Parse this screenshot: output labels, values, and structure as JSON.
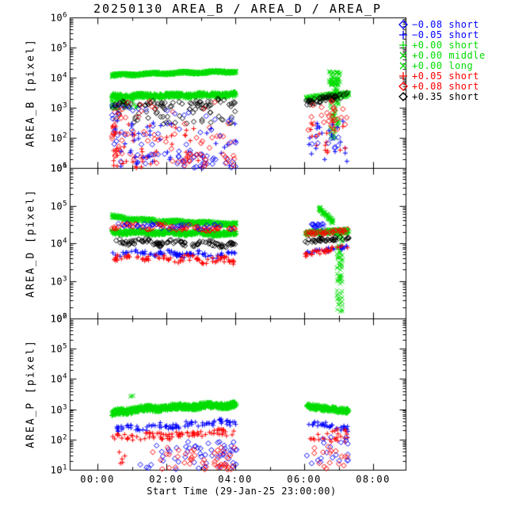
{
  "title": "20250130 AREA_B / AREA_D / AREA_P",
  "xaxis": {
    "label": "Start Time (29-Jan-25 23:00:00)",
    "ticks": [
      {
        "label": "00:00",
        "hour": 0
      },
      {
        "label": "02:00",
        "hour": 2
      },
      {
        "label": "04:00",
        "hour": 4
      },
      {
        "label": "06:00",
        "hour": 6
      },
      {
        "label": "08:00",
        "hour": 8
      }
    ],
    "minor_tick_hours": [
      1,
      3,
      5,
      7
    ]
  },
  "panels": [
    {
      "id": "AREA_B",
      "ylabel": "AREA_B [pixel]",
      "y_log_min": 1,
      "y_log_max": 6,
      "ytick_exponents": [
        1,
        2,
        3,
        4,
        5,
        6
      ]
    },
    {
      "id": "AREA_D",
      "ylabel": "AREA_D [pixel]",
      "y_log_min": 2,
      "y_log_max": 6,
      "ytick_exponents": [
        2,
        3,
        4,
        5,
        6
      ]
    },
    {
      "id": "AREA_P",
      "ylabel": "AREA_P [pixel]",
      "y_log_min": 1,
      "y_log_max": 6,
      "ytick_exponents": [
        1,
        2,
        3,
        4,
        5,
        6
      ]
    }
  ],
  "colors": {
    "blue": "#0000ff",
    "green": "#00dd00",
    "red": "#ff0000",
    "black": "#000000"
  },
  "legend": {
    "items": [
      {
        "marker": "diamond",
        "color": "#0000ff",
        "label": "−0.08 short"
      },
      {
        "marker": "plus",
        "color": "#0000ff",
        "label": "−0.05 short"
      },
      {
        "marker": "plus",
        "color": "#00dd00",
        "label": "+0.00 short"
      },
      {
        "marker": "x",
        "color": "#00dd00",
        "label": "+0.00 middle"
      },
      {
        "marker": "x",
        "color": "#00dd00",
        "label": "+0.00 long"
      },
      {
        "marker": "plus",
        "color": "#ff0000",
        "label": "+0.05 short"
      },
      {
        "marker": "diamond",
        "color": "#ff0000",
        "label": "+0.08 short"
      },
      {
        "marker": "diamond",
        "color": "#000000",
        "label": "+0.35 short"
      }
    ]
  },
  "chart_data": {
    "type": "scatter",
    "x_unit": "hours after 30-Jan-2025 00:00 (axis origin 29-Jan-25 23:00:00)",
    "x_range_hours": [
      -0.8,
      8.95
    ],
    "observation_windows_hours": [
      [
        0.42,
        4.03
      ],
      [
        6.03,
        7.3
      ]
    ],
    "y_scale": "log10 pixel area",
    "series": [
      {
        "panel": 0,
        "marker": "x",
        "color": "#00dd00",
        "label": "+0.00 middle",
        "mode": "band",
        "n": 650,
        "t0": 0.42,
        "t1": 4.03,
        "v0": 4.06,
        "v1": 4.2,
        "spread": 0.05,
        "curve": 0.6,
        "wiggle": 0.02
      },
      {
        "panel": 0,
        "marker": "plus",
        "color": "#00dd00",
        "label": "+0.00 short",
        "mode": "band",
        "n": 650,
        "t0": 0.42,
        "t1": 4.03,
        "v0": 3.38,
        "v1": 3.44,
        "spread": 0.08,
        "wiggle": 0.02
      },
      {
        "panel": 0,
        "marker": "x",
        "color": "#00dd00",
        "label": "+0.00 long",
        "mode": "scatter",
        "n": 50,
        "t0": 0.42,
        "t1": 1.2,
        "v0": 2.95,
        "v1": 3.38,
        "bias": "left"
      },
      {
        "panel": 0,
        "marker": "diamond",
        "color": "#000000",
        "label": "+0.35 short",
        "mode": "band",
        "n": 65,
        "t0": 0.42,
        "t1": 4.03,
        "v0": 3.08,
        "v1": 3.18,
        "spread": 0.1,
        "wiggle": 0.05
      },
      {
        "panel": 0,
        "marker": "diamond",
        "color": "#000000",
        "label": "+0.35 short",
        "mode": "scatter",
        "n": 45,
        "t0": 0.42,
        "t1": 4.03,
        "v0": 2.45,
        "v1": 3.08
      },
      {
        "panel": 0,
        "marker": "diamond",
        "color": "#ff0000",
        "label": "+0.08 short",
        "mode": "scatter",
        "n": 75,
        "t0": 0.42,
        "t1": 4.03,
        "v0": 1.15,
        "v1": 3.25,
        "bias": "left"
      },
      {
        "panel": 0,
        "marker": "diamond",
        "color": "#0000ff",
        "label": "−0.08 short",
        "mode": "scatter",
        "n": 55,
        "t0": 0.42,
        "t1": 4.03,
        "v0": 1.1,
        "v1": 3.1,
        "bias": "left"
      },
      {
        "panel": 0,
        "marker": "plus",
        "color": "#ff0000",
        "label": "+0.05 short",
        "mode": "scatter",
        "n": 45,
        "t0": 0.42,
        "t1": 3.4,
        "v0": 1.0,
        "v1": 2.5,
        "bias": "left"
      },
      {
        "panel": 0,
        "marker": "plus",
        "color": "#0000ff",
        "label": "−0.05 short",
        "mode": "scatter",
        "n": 40,
        "t0": 0.42,
        "t1": 4.03,
        "v0": 1.0,
        "v1": 2.6,
        "bias": "left"
      },
      {
        "panel": 0,
        "marker": "diamond",
        "color": "#0000ff",
        "label": "−0.08 short",
        "mode": "scatter",
        "n": 25,
        "t0": 2.3,
        "t1": 4.05,
        "v0": 1.0,
        "v1": 1.6
      },
      {
        "panel": 0,
        "marker": "diamond",
        "color": "#ff0000",
        "label": "+0.08 short",
        "mode": "scatter",
        "n": 20,
        "t0": 2.3,
        "t1": 4.05,
        "v0": 1.0,
        "v1": 1.5
      },
      {
        "panel": 0,
        "marker": "x",
        "color": "#00dd00",
        "label": "+0.00 long",
        "mode": "band",
        "n": 180,
        "t0": 6.03,
        "t1": 7.3,
        "v0": 3.3,
        "v1": 3.45,
        "spread": 0.09
      },
      {
        "panel": 0,
        "marker": "x",
        "color": "#00dd00",
        "label": "+0.00 long",
        "mode": "streak",
        "n": 80,
        "t0": 6.75,
        "t1": 7.0,
        "v0": 1.95,
        "v1": 4.0
      },
      {
        "panel": 0,
        "marker": "x",
        "color": "#00dd00",
        "label": "+0.00 middle",
        "mode": "scatter",
        "n": 45,
        "t0": 6.72,
        "t1": 7.05,
        "v0": 3.75,
        "v1": 4.22
      },
      {
        "panel": 0,
        "marker": "diamond",
        "color": "#000000",
        "label": "+0.35 short",
        "mode": "band",
        "n": 50,
        "t0": 6.03,
        "t1": 7.3,
        "v0": 3.15,
        "v1": 3.45,
        "spread": 0.1
      },
      {
        "panel": 0,
        "marker": "diamond",
        "color": "#ff0000",
        "label": "+0.08 short",
        "mode": "scatter",
        "n": 28,
        "t0": 6.05,
        "t1": 7.25,
        "v0": 2.2,
        "v1": 3.25
      },
      {
        "panel": 0,
        "marker": "plus",
        "color": "#0000ff",
        "label": "−0.05 short",
        "mode": "scatter",
        "n": 20,
        "t0": 6.1,
        "t1": 7.25,
        "v0": 1.2,
        "v1": 2.6
      },
      {
        "panel": 0,
        "marker": "plus",
        "color": "#ff0000",
        "label": "+0.05 short",
        "mode": "scatter",
        "n": 18,
        "t0": 6.1,
        "t1": 7.25,
        "v0": 1.5,
        "v1": 2.75
      },
      {
        "panel": 0,
        "marker": "diamond",
        "color": "#0000ff",
        "label": "−0.08 short",
        "mode": "scatter",
        "n": 10,
        "t0": 6.1,
        "t1": 7.2,
        "v0": 1.6,
        "v1": 2.85
      },
      {
        "panel": 1,
        "marker": "x",
        "color": "#00dd00",
        "label": "+0.00 middle",
        "mode": "band",
        "n": 550,
        "t0": 0.42,
        "t1": 4.03,
        "v0": 4.74,
        "v1": 4.51,
        "spread": 0.05,
        "curve": 0.45,
        "wiggle": 0.015
      },
      {
        "panel": 1,
        "marker": "plus",
        "color": "#00dd00",
        "label": "+0.00 short",
        "mode": "band",
        "n": 800,
        "t0": 0.42,
        "t1": 4.03,
        "v0": 4.3,
        "v1": 4.25,
        "spread": 0.06,
        "wiggle": 0.02
      },
      {
        "panel": 1,
        "marker": "diamond",
        "color": "#ff0000",
        "label": "+0.08 short",
        "mode": "band",
        "n": 85,
        "t0": 0.42,
        "t1": 4.03,
        "v0": 4.46,
        "v1": 4.38,
        "spread": 0.05,
        "wiggle": 0.04
      },
      {
        "panel": 1,
        "marker": "diamond",
        "color": "#0000ff",
        "label": "−0.08 short",
        "mode": "band",
        "n": 35,
        "t0": 0.42,
        "t1": 4.03,
        "v0": 4.48,
        "v1": 4.42,
        "spread": 0.05,
        "wiggle": 0.03
      },
      {
        "panel": 1,
        "marker": "diamond",
        "color": "#000000",
        "label": "+0.35 short",
        "mode": "band",
        "n": 110,
        "t0": 0.42,
        "t1": 4.03,
        "v0": 4.06,
        "v1": 3.96,
        "spread": 0.06,
        "wiggle": 0.05
      },
      {
        "panel": 1,
        "marker": "plus",
        "color": "#0000ff",
        "label": "−0.05 short",
        "mode": "band",
        "n": 85,
        "t0": 0.42,
        "t1": 4.03,
        "v0": 3.76,
        "v1": 3.68,
        "spread": 0.06,
        "wiggle": 0.04
      },
      {
        "panel": 1,
        "marker": "plus",
        "color": "#ff0000",
        "label": "+0.05 short",
        "mode": "band",
        "n": 85,
        "t0": 0.42,
        "t1": 4.03,
        "v0": 3.64,
        "v1": 3.52,
        "spread": 0.08,
        "wiggle": 0.06
      },
      {
        "panel": 1,
        "marker": "x",
        "color": "#00dd00",
        "label": "+0.00 long",
        "mode": "band",
        "n": 70,
        "t0": 6.42,
        "t1": 6.85,
        "v0": 4.95,
        "v1": 4.55,
        "spread": 0.06
      },
      {
        "panel": 1,
        "marker": "x",
        "color": "#00dd00",
        "label": "+0.00 long",
        "mode": "streak",
        "n": 75,
        "t0": 6.95,
        "t1": 7.12,
        "v0": 2.15,
        "v1": 4.35
      },
      {
        "panel": 1,
        "marker": "plus",
        "color": "#00dd00",
        "label": "+0.00 short",
        "mode": "band",
        "n": 230,
        "t0": 6.03,
        "t1": 7.3,
        "v0": 4.27,
        "v1": 4.33,
        "spread": 0.06
      },
      {
        "panel": 1,
        "marker": "diamond",
        "color": "#0000ff",
        "label": "−0.08 short",
        "mode": "scatter",
        "n": 15,
        "t0": 6.05,
        "t1": 6.6,
        "v0": 4.42,
        "v1": 4.52
      },
      {
        "panel": 1,
        "marker": "diamond",
        "color": "#ff0000",
        "label": "+0.08 short",
        "mode": "band",
        "n": 40,
        "t0": 6.03,
        "t1": 7.3,
        "v0": 4.25,
        "v1": 4.33,
        "spread": 0.05
      },
      {
        "panel": 1,
        "marker": "diamond",
        "color": "#000000",
        "label": "+0.35 short",
        "mode": "band",
        "n": 40,
        "t0": 6.03,
        "t1": 7.3,
        "v0": 4.05,
        "v1": 4.15,
        "spread": 0.05
      },
      {
        "panel": 1,
        "marker": "plus",
        "color": "#0000ff",
        "label": "−0.05 short",
        "mode": "band",
        "n": 28,
        "t0": 6.03,
        "t1": 7.3,
        "v0": 3.75,
        "v1": 3.9,
        "spread": 0.05
      },
      {
        "panel": 1,
        "marker": "plus",
        "color": "#ff0000",
        "label": "+0.05 short",
        "mode": "band",
        "n": 30,
        "t0": 6.03,
        "t1": 7.3,
        "v0": 3.7,
        "v1": 3.92,
        "spread": 0.06
      },
      {
        "panel": 2,
        "marker": "plus",
        "color": "#00dd00",
        "label": "+0.00 short",
        "mode": "band",
        "n": 900,
        "t0": 0.42,
        "t1": 4.03,
        "v0": 2.78,
        "v1": 3.14,
        "spread": 0.1,
        "curve": 0.35,
        "wiggle": 0.03
      },
      {
        "panel": 2,
        "marker": "x",
        "color": "#00dd00",
        "label": "+0.00 middle",
        "mode": "scatter",
        "n": 3,
        "t0": 0.85,
        "t1": 1.15,
        "v0": 3.38,
        "v1": 3.46
      },
      {
        "panel": 2,
        "marker": "plus",
        "color": "#0000ff",
        "label": "−0.05 short",
        "mode": "band",
        "n": 85,
        "t0": 0.42,
        "t1": 4.03,
        "v0": 2.36,
        "v1": 2.56,
        "spread": 0.09,
        "wiggle": 0.05
      },
      {
        "panel": 2,
        "marker": "plus",
        "color": "#ff0000",
        "label": "+0.05 short",
        "mode": "band",
        "n": 85,
        "t0": 0.42,
        "t1": 4.03,
        "v0": 2.02,
        "v1": 2.28,
        "spread": 0.11,
        "wiggle": 0.05
      },
      {
        "panel": 2,
        "marker": "diamond",
        "color": "#0000ff",
        "label": "−0.08 short",
        "mode": "scatter",
        "n": 55,
        "t0": 0.9,
        "t1": 4.05,
        "v0": 1.0,
        "v1": 1.95,
        "bias": "right"
      },
      {
        "panel": 2,
        "marker": "diamond",
        "color": "#ff0000",
        "label": "+0.08 short",
        "mode": "scatter",
        "n": 45,
        "t0": 1.4,
        "t1": 4.05,
        "v0": 1.0,
        "v1": 1.75,
        "bias": "right"
      },
      {
        "panel": 2,
        "marker": "plus",
        "color": "#ff0000",
        "label": "+0.05 short",
        "mode": "scatter",
        "n": 5,
        "t0": 0.42,
        "t1": 0.9,
        "v0": 1.0,
        "v1": 1.6
      },
      {
        "panel": 2,
        "marker": "plus",
        "color": "#00dd00",
        "label": "+0.00 short",
        "mode": "band",
        "n": 280,
        "t0": 6.07,
        "t1": 7.3,
        "v0": 3.1,
        "v1": 2.93,
        "spread": 0.09
      },
      {
        "panel": 2,
        "marker": "plus",
        "color": "#0000ff",
        "label": "−0.05 short",
        "mode": "band",
        "n": 32,
        "t0": 6.07,
        "t1": 7.3,
        "v0": 2.6,
        "v1": 2.34,
        "spread": 0.09
      },
      {
        "panel": 2,
        "marker": "plus",
        "color": "#ff0000",
        "label": "+0.05 short",
        "mode": "scatter",
        "n": 26,
        "t0": 6.07,
        "t1": 7.3,
        "v0": 1.9,
        "v1": 2.35
      },
      {
        "panel": 2,
        "marker": "diamond",
        "color": "#0000ff",
        "label": "−0.08 short",
        "mode": "scatter",
        "n": 20,
        "t0": 6.07,
        "t1": 7.3,
        "v0": 1.2,
        "v1": 2.1
      },
      {
        "panel": 2,
        "marker": "diamond",
        "color": "#ff0000",
        "label": "+0.08 short",
        "mode": "scatter",
        "n": 16,
        "t0": 6.2,
        "t1": 7.3,
        "v0": 1.0,
        "v1": 1.8
      }
    ]
  }
}
